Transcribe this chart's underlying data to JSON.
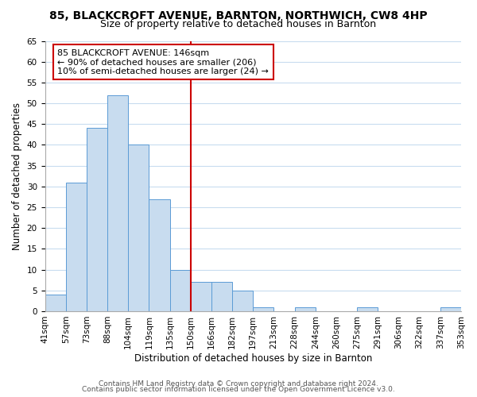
{
  "title": "85, BLACKCROFT AVENUE, BARNTON, NORTHWICH, CW8 4HP",
  "subtitle": "Size of property relative to detached houses in Barnton",
  "xlabel": "Distribution of detached houses by size in Barnton",
  "ylabel": "Number of detached properties",
  "bin_labels": [
    "41sqm",
    "57sqm",
    "73sqm",
    "88sqm",
    "104sqm",
    "119sqm",
    "135sqm",
    "150sqm",
    "166sqm",
    "182sqm",
    "197sqm",
    "213sqm",
    "228sqm",
    "244sqm",
    "260sqm",
    "275sqm",
    "291sqm",
    "306sqm",
    "322sqm",
    "337sqm",
    "353sqm"
  ],
  "bar_values": [
    4,
    31,
    44,
    52,
    40,
    27,
    10,
    7,
    7,
    5,
    1,
    0,
    1,
    0,
    0,
    1,
    0,
    0,
    0,
    1
  ],
  "bar_color": "#c8dcef",
  "bar_edge_color": "#5b9bd5",
  "vline_label_index": 7,
  "vline_color": "#cc0000",
  "annotation_text": "85 BLACKCROFT AVENUE: 146sqm\n← 90% of detached houses are smaller (206)\n10% of semi-detached houses are larger (24) →",
  "annotation_box_edge": "#cc0000",
  "ylim": [
    0,
    65
  ],
  "yticks": [
    0,
    5,
    10,
    15,
    20,
    25,
    30,
    35,
    40,
    45,
    50,
    55,
    60,
    65
  ],
  "footnote1": "Contains HM Land Registry data © Crown copyright and database right 2024.",
  "footnote2": "Contains public sector information licensed under the Open Government Licence v3.0.",
  "bg_color": "#ffffff",
  "grid_color": "#c8dcef",
  "title_fontsize": 10,
  "subtitle_fontsize": 9,
  "axis_label_fontsize": 8.5,
  "tick_fontsize": 7.5,
  "annotation_fontsize": 8,
  "footnote_fontsize": 6.5
}
